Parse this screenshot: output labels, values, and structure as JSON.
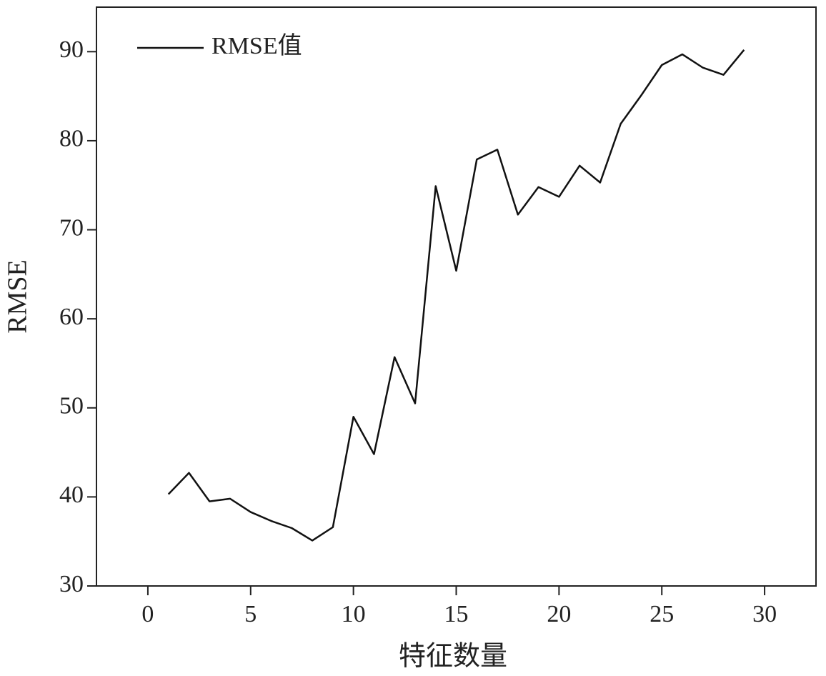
{
  "chart_data": {
    "type": "line",
    "x_label": "特征数量",
    "y_label": "RMSE",
    "x": [
      1,
      2,
      3,
      4,
      5,
      6,
      7,
      8,
      9,
      10,
      11,
      12,
      13,
      14,
      15,
      16,
      17,
      18,
      19,
      20,
      21,
      22,
      23,
      24,
      25,
      26,
      27,
      28,
      29
    ],
    "series": [
      {
        "name": "RMSE值",
        "color": "#111111",
        "values": [
          40.3,
          42.7,
          39.5,
          39.8,
          38.3,
          37.3,
          36.5,
          35.1,
          36.6,
          49.0,
          44.8,
          55.7,
          50.5,
          74.9,
          65.4,
          77.9,
          79.0,
          71.7,
          74.8,
          73.7,
          77.2,
          75.3,
          81.9,
          85.1,
          88.5,
          89.7,
          88.2,
          87.4,
          90.2
        ]
      }
    ],
    "xlim": [
      -2.5,
      32.5
    ],
    "xticks": [
      0,
      5,
      10,
      15,
      20,
      25,
      30
    ],
    "ylim": [
      30,
      95
    ],
    "yticks": [
      30,
      40,
      50,
      60,
      70,
      80,
      90
    ],
    "legend": "upper left"
  }
}
